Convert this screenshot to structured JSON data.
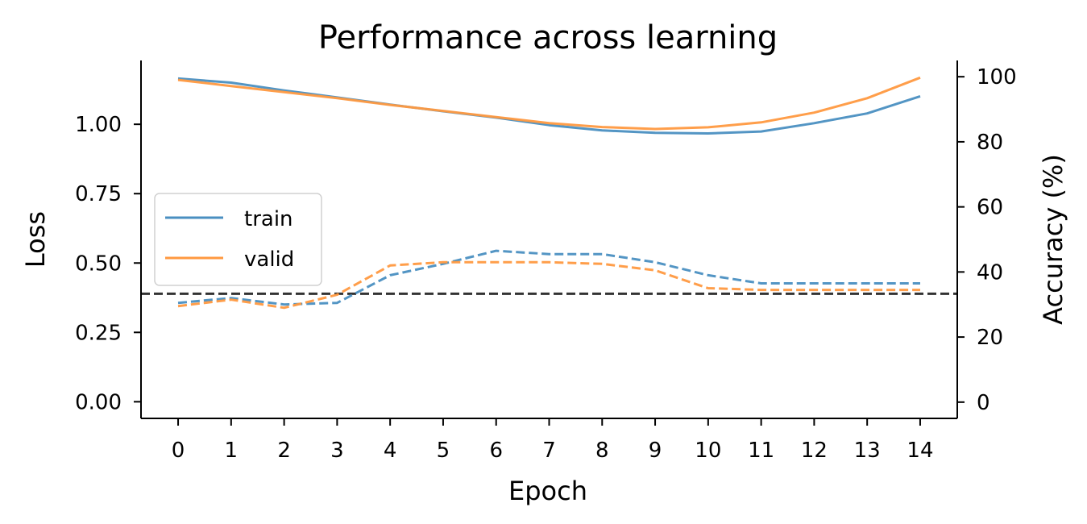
{
  "chart_data": {
    "type": "line",
    "title": "Performance across learning",
    "xlabel": "Epoch",
    "ylabel_left": "Loss",
    "ylabel_right": "Accuracy (%)",
    "x": [
      0,
      1,
      2,
      3,
      4,
      5,
      6,
      7,
      8,
      9,
      10,
      11,
      12,
      13,
      14
    ],
    "xlim": [
      -0.7,
      14.7
    ],
    "ylim_left": [
      -0.06,
      1.23
    ],
    "ylim_right": [
      -5,
      105
    ],
    "yticks_left": [
      "0.00",
      "0.25",
      "0.50",
      "0.75",
      "1.00"
    ],
    "yticks_right": [
      "0",
      "20",
      "40",
      "60",
      "80",
      "100"
    ],
    "colors": {
      "train": "#4a8fc1",
      "valid": "#ff9940",
      "chance": "#333333"
    },
    "legend": {
      "position": "center-left",
      "entries": [
        "train",
        "valid"
      ]
    },
    "chance_level_accuracy": 33.3,
    "series": [
      {
        "name": "train",
        "axis": "left",
        "style": "solid",
        "values": [
          1.165,
          1.15,
          1.122,
          1.097,
          1.071,
          1.047,
          1.024,
          0.997,
          0.978,
          0.969,
          0.967,
          0.974,
          1.004,
          1.039,
          1.101
        ]
      },
      {
        "name": "valid",
        "axis": "left",
        "style": "solid",
        "values": [
          1.16,
          1.138,
          1.116,
          1.094,
          1.07,
          1.048,
          1.026,
          1.004,
          0.99,
          0.983,
          0.989,
          1.007,
          1.042,
          1.094,
          1.168
        ]
      },
      {
        "name": "train",
        "axis": "right",
        "style": "dashed",
        "values": [
          30.5,
          32,
          30,
          30.5,
          39,
          42.5,
          46.5,
          45.5,
          45.5,
          43,
          39,
          36.5,
          36.5,
          36.5,
          36.5
        ]
      },
      {
        "name": "valid",
        "axis": "right",
        "style": "dashed",
        "values": [
          29.5,
          31.5,
          29,
          33,
          42,
          43,
          43,
          43,
          42.5,
          40.5,
          35,
          34.5,
          34.5,
          34.5,
          34.5
        ]
      }
    ]
  }
}
